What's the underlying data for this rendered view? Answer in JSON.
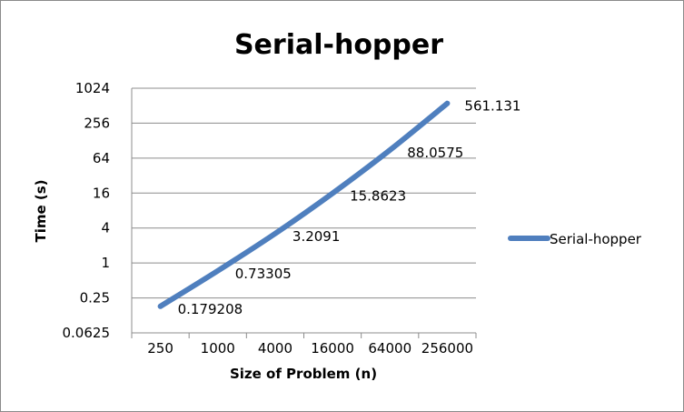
{
  "chart_data": {
    "type": "line",
    "title": "Serial-hopper",
    "xlabel": "Size of Problem (n)",
    "ylabel": "Time (s)",
    "categories": [
      "250",
      "1000",
      "4000",
      "16000",
      "64000",
      "256000"
    ],
    "y_scale": "log2",
    "ylim": [
      0.0625,
      1024
    ],
    "y_ticks": [
      "0.0625",
      "0.25",
      "1",
      "4",
      "16",
      "64",
      "256",
      "1024"
    ],
    "grid": true,
    "legend_position": "right",
    "series": [
      {
        "name": "Serial-hopper",
        "color": "#4F7FBE",
        "values": [
          0.179208,
          0.73305,
          3.2091,
          15.8623,
          88.0575,
          561.131
        ],
        "labels": [
          "0.179208",
          "0.73305",
          "3.2091",
          "15.8623",
          "88.0575",
          "561.131"
        ]
      }
    ]
  }
}
